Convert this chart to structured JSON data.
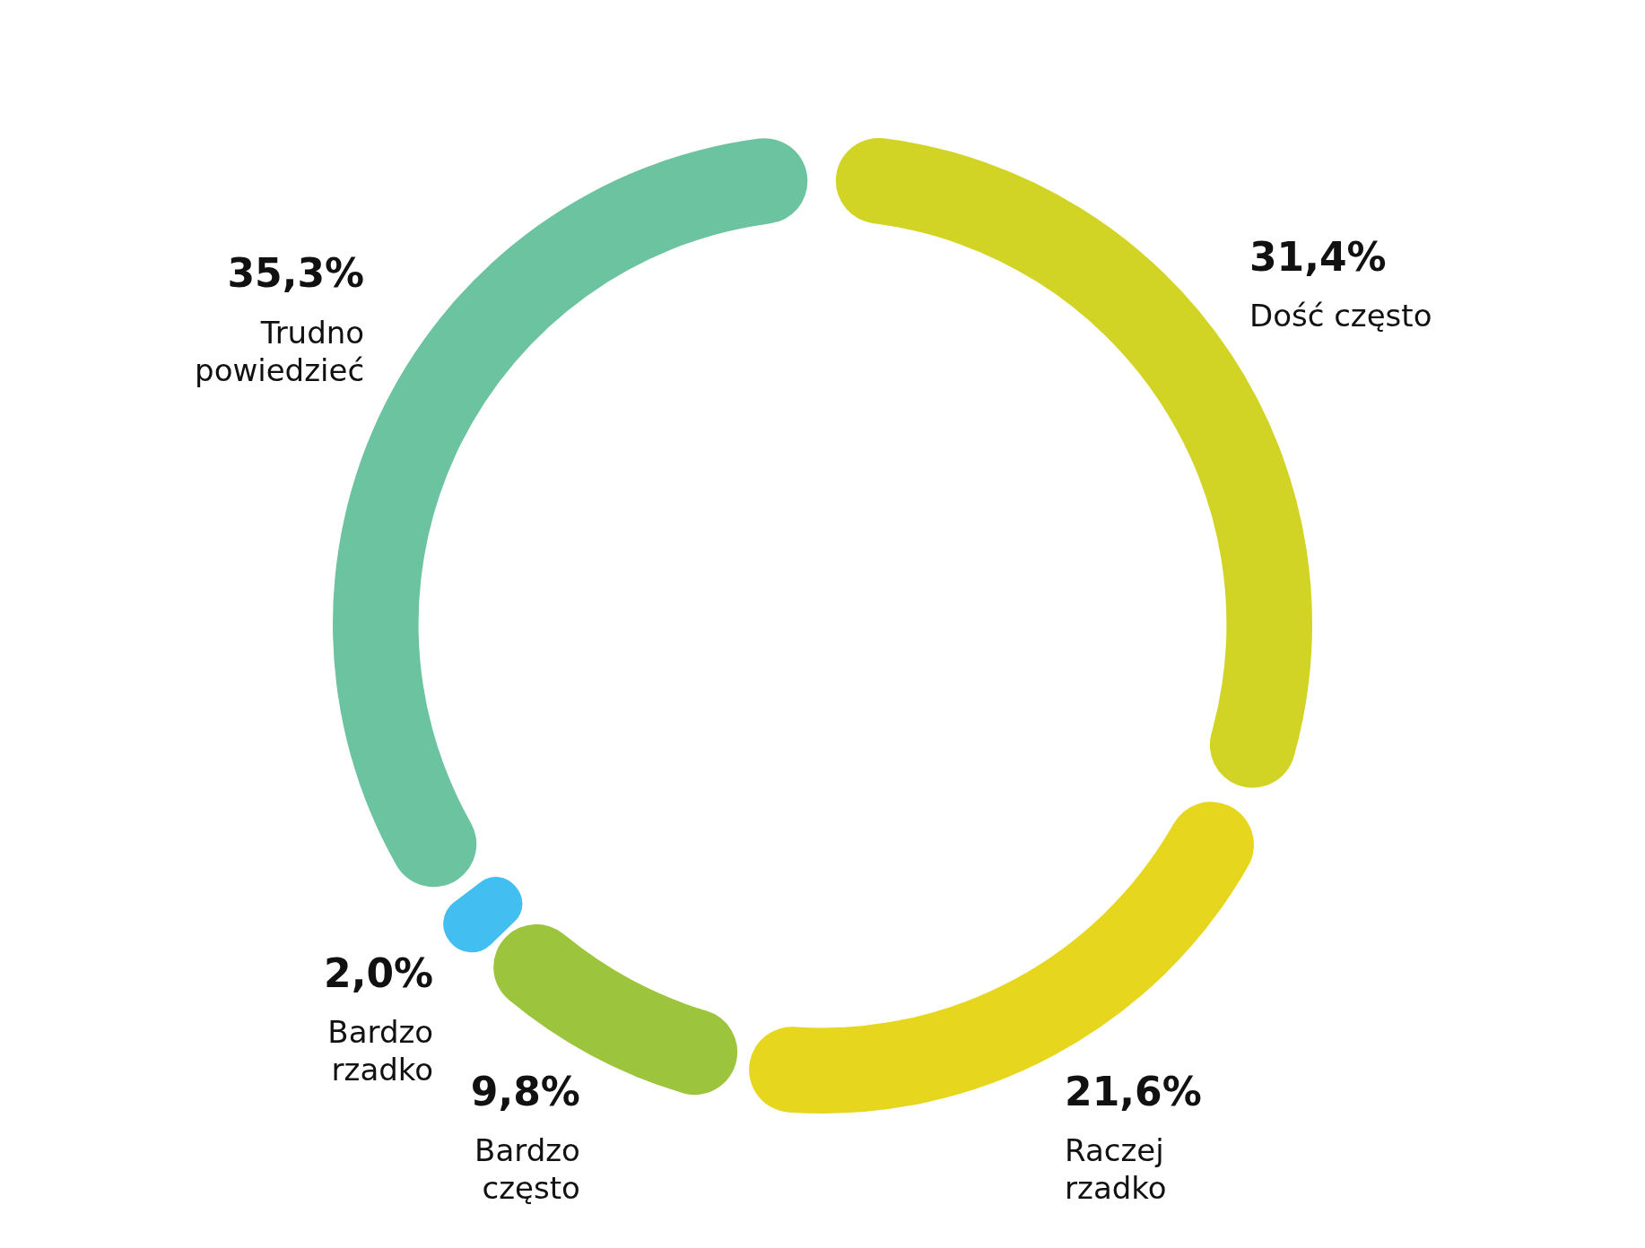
{
  "chart_data": {
    "type": "donut",
    "categories": [
      "Dość często",
      "Raczej rzadko",
      "Bardzo często",
      "Bardzo rzadko",
      "Trudno powiedzieć"
    ],
    "values": [
      31.4,
      21.6,
      9.8,
      2.0,
      35.3
    ],
    "value_labels": [
      "31,4%",
      "21,6%",
      "9,8%",
      "2,0%",
      "35,3%"
    ],
    "colors": [
      "#d2d425",
      "#e6d61d",
      "#9cc43c",
      "#42bff0",
      "#6cc3a0"
    ],
    "legend": false
  }
}
